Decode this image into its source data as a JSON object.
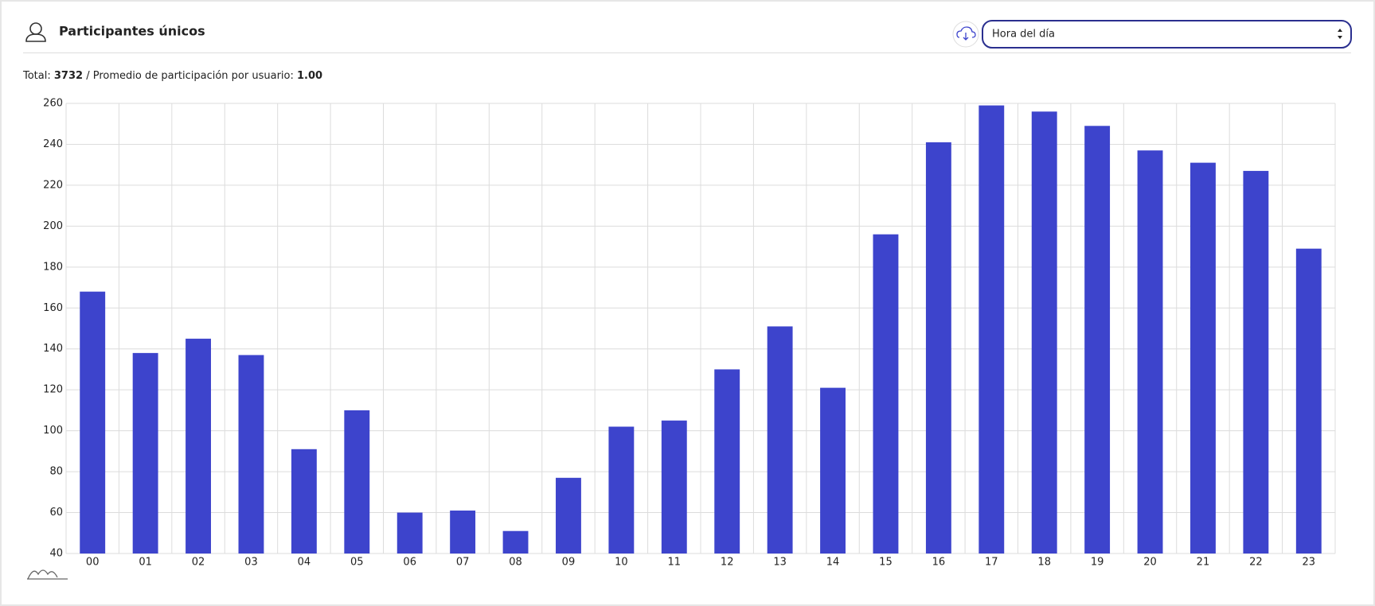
{
  "header": {
    "title": "Participantes únicos",
    "select": "Hora del día"
  },
  "summary": {
    "total_label": "Total:",
    "total": "3732",
    "average_label": "/ Promedio de participación por usuario:",
    "average": "1.00"
  },
  "chart_data": {
    "type": "bar",
    "categories": [
      "00",
      "01",
      "02",
      "03",
      "04",
      "05",
      "06",
      "07",
      "08",
      "09",
      "10",
      "11",
      "12",
      "13",
      "14",
      "15",
      "16",
      "17",
      "18",
      "19",
      "20",
      "21",
      "22",
      "23"
    ],
    "values": [
      168,
      138,
      145,
      137,
      91,
      110,
      60,
      61,
      51,
      77,
      102,
      105,
      130,
      151,
      121,
      196,
      241,
      259,
      256,
      249,
      237,
      231,
      227,
      189
    ],
    "color": "#3d44cc",
    "ylim": [
      40,
      260
    ],
    "yticks": [
      40,
      60,
      80,
      100,
      120,
      140,
      160,
      180,
      200,
      220,
      240,
      260
    ],
    "grid": true
  }
}
